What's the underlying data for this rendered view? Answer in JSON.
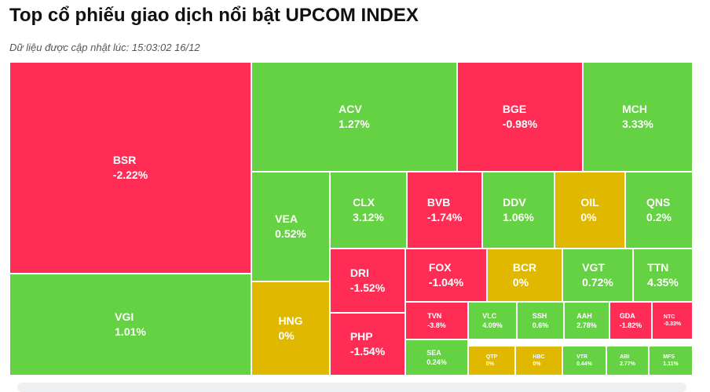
{
  "header": {
    "title": "Top cổ phiếu giao dịch nổi bật UPCOM INDEX",
    "updated": "Dữ liệu được cập nhật lúc: 15:03:02 16/12"
  },
  "colors": {
    "up": "#64d242",
    "down": "#ff2d55",
    "flat": "#e0b800"
  },
  "chart_data": {
    "type": "treemap",
    "items": [
      {
        "symbol": "BSR",
        "change": "-2.22%",
        "value": -2.22
      },
      {
        "symbol": "VGI",
        "change": "1.01%",
        "value": 1.01
      },
      {
        "symbol": "ACV",
        "change": "1.27%",
        "value": 1.27
      },
      {
        "symbol": "BGE",
        "change": "-0.98%",
        "value": -0.98
      },
      {
        "symbol": "MCH",
        "change": "3.33%",
        "value": 3.33
      },
      {
        "symbol": "VEA",
        "change": "0.52%",
        "value": 0.52
      },
      {
        "symbol": "HNG",
        "change": "0%",
        "value": 0
      },
      {
        "symbol": "CLX",
        "change": "3.12%",
        "value": 3.12
      },
      {
        "symbol": "BVB",
        "change": "-1.74%",
        "value": -1.74
      },
      {
        "symbol": "DDV",
        "change": "1.06%",
        "value": 1.06
      },
      {
        "symbol": "OIL",
        "change": "0%",
        "value": 0
      },
      {
        "symbol": "QNS",
        "change": "0.2%",
        "value": 0.2
      },
      {
        "symbol": "DRI",
        "change": "-1.52%",
        "value": -1.52
      },
      {
        "symbol": "FOX",
        "change": "-1.04%",
        "value": -1.04
      },
      {
        "symbol": "BCR",
        "change": "0%",
        "value": 0
      },
      {
        "symbol": "VGT",
        "change": "0.72%",
        "value": 0.72
      },
      {
        "symbol": "TTN",
        "change": "4.35%",
        "value": 4.35
      },
      {
        "symbol": "PHP",
        "change": "-1.54%",
        "value": -1.54
      },
      {
        "symbol": "TVN",
        "change": "-3.8%",
        "value": -3.8
      },
      {
        "symbol": "VLC",
        "change": "4.09%",
        "value": 4.09
      },
      {
        "symbol": "SSH",
        "change": "0.6%",
        "value": 0.6
      },
      {
        "symbol": "AAH",
        "change": "2.78%",
        "value": 2.78
      },
      {
        "symbol": "GDA",
        "change": "-1.82%",
        "value": -1.82
      },
      {
        "symbol": "NTC",
        "change": "-0.33%",
        "value": -0.33
      },
      {
        "symbol": "SEA",
        "change": "0.24%",
        "value": 0.24
      },
      {
        "symbol": "QTP",
        "change": "0%",
        "value": 0
      },
      {
        "symbol": "HBC",
        "change": "0%",
        "value": 0
      },
      {
        "symbol": "VTR",
        "change": "0.44%",
        "value": 0.44
      },
      {
        "symbol": "ABI",
        "change": "2.77%",
        "value": 2.77
      },
      {
        "symbol": "MFS",
        "change": "1.11%",
        "value": 1.11
      }
    ]
  }
}
